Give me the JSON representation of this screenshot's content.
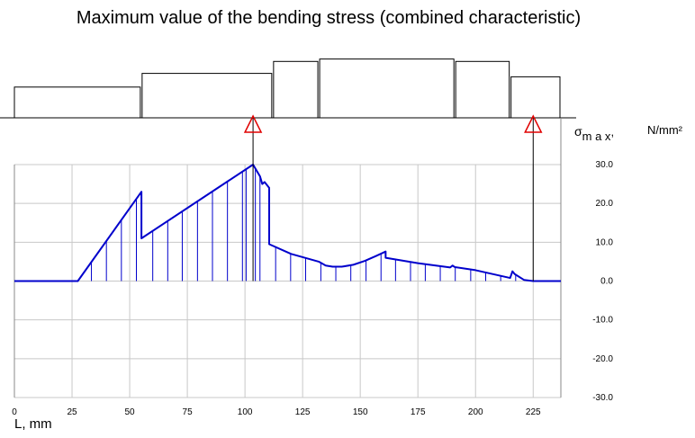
{
  "chart_data": {
    "type": "line",
    "title": "Maximum value of the bending stress (combined characteristic)",
    "xlabel": "L, mm",
    "ylabel": {
      "symbol": "σ",
      "subscript": "m a x",
      "sep": ",",
      "unit": "N/mm²"
    },
    "xlim": [
      0,
      237
    ],
    "ylim": [
      -30,
      30
    ],
    "xticks": [
      0,
      25,
      50,
      75,
      100,
      125,
      150,
      175,
      200,
      225
    ],
    "xtick_labels": [
      "0",
      "25",
      "50",
      "75",
      "100",
      "125",
      "150",
      "175",
      "200",
      "225"
    ],
    "yticks": [
      30,
      20,
      10,
      0,
      -10,
      -20,
      -30
    ],
    "ytick_labels": [
      "30.0",
      "20.0",
      "10.0",
      "0.0",
      "-10.0",
      "-20.0",
      "-30.0"
    ],
    "grid": true,
    "series": [
      {
        "color": "#0000cc",
        "x": [
          0,
          27.5,
          55.1,
          55.1,
          103.5,
          106.5,
          107.5,
          108.5,
          110.5,
          110.5,
          120,
          132,
          135,
          138,
          142,
          147,
          152,
          157,
          161,
          161,
          175,
          189,
          190,
          191,
          200,
          215,
          216,
          217,
          221,
          225,
          237
        ],
        "y": [
          0,
          0,
          23,
          11,
          30,
          27,
          25,
          25.5,
          24,
          9.5,
          7,
          5,
          4,
          3.7,
          3.7,
          4.2,
          5.2,
          6.5,
          7.6,
          6,
          4.6,
          3.5,
          4,
          3.6,
          2.8,
          0.8,
          2.5,
          1.8,
          0.3,
          0,
          0
        ],
        "hatch_x": [
          33.4,
          39.9,
          46.4,
          52.9,
          60,
          66.5,
          72.8,
          79.4,
          85.9,
          92.4,
          98.9,
          100.5,
          104.5,
          106.5,
          113.3,
          119.8,
          126.3,
          132.9,
          139.4,
          145.9,
          152.5,
          159,
          165.3,
          171.8,
          178.2,
          184.7,
          191.2,
          197.9,
          204.4,
          210.9,
          217.4
        ]
      }
    ],
    "supports": [
      {
        "x": 103.5,
        "label_icon": "support-arrow-icon"
      },
      {
        "x": 225,
        "label_icon": "support-arrow-icon"
      }
    ],
    "shaft_profile_x": [
      0,
      55,
      112,
      132,
      191,
      215,
      237
    ],
    "shaft_profile_y": [
      9,
      13,
      16.5,
      17.2,
      16.5,
      12,
      12
    ]
  },
  "colors": {
    "curve": "#0000cc",
    "support": "#e00000",
    "grid": "#c8c8c8"
  }
}
